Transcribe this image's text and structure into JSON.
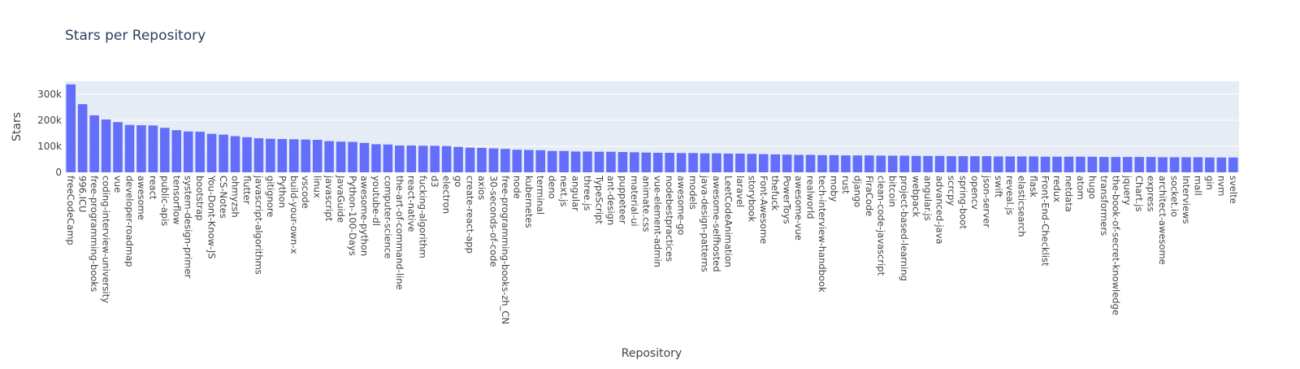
{
  "chart_data": {
    "type": "bar",
    "title": "Stars per Repository",
    "xlabel": "Repository",
    "ylabel": "Stars",
    "ylim": [
      0,
      350000
    ],
    "yticks": [
      0,
      100000,
      200000,
      300000
    ],
    "ytick_labels": [
      "0",
      "100k",
      "200k",
      "300k"
    ],
    "grid": true,
    "colors": {
      "bar": "#636efa",
      "plot_bg": "#e5ecf6",
      "grid": "#ffffff",
      "text": "#444444",
      "title": "#2a3f5f"
    },
    "categories": [
      "freeCodeCamp",
      "996.ICU",
      "free-programming-books",
      "coding-interview-university",
      "vue",
      "developer-roadmap",
      "awesome",
      "react",
      "public-apis",
      "tensorflow",
      "system-design-primer",
      "bootstrap",
      "You-Dont-Know-JS",
      "CS-Notes",
      "ohmyzsh",
      "flutter",
      "javascript-algorithms",
      "gitignore",
      "Python",
      "build-your-own-x",
      "vscode",
      "linux",
      "javascript",
      "JavaGuide",
      "Python-100-Days",
      "awesome-python",
      "youtube-dl",
      "computer-science",
      "the-art-of-command-line",
      "react-native",
      "fucking-algorithm",
      "d3",
      "electron",
      "go",
      "create-react-app",
      "axios",
      "30-seconds-of-code",
      "free-programming-books-zh_CN",
      "node",
      "kubernetes",
      "terminal",
      "deno",
      "next.js",
      "angular",
      "three.js",
      "TypeScript",
      "ant-design",
      "puppeteer",
      "material-ui",
      "animate.css",
      "vue-element-admin",
      "nodebestpractices",
      "awesome-go",
      "models",
      "java-design-patterns",
      "awesome-selfhosted",
      "LeetCodeAnimation",
      "laravel",
      "storybook",
      "Font-Awesome",
      "thefuck",
      "PowerToys",
      "awesome-vue",
      "realworld",
      "tech-interview-handbook",
      "moby",
      "rust",
      "django",
      "FiraCode",
      "clean-code-javascript",
      "bitcoin",
      "project-based-learning",
      "webpack",
      "angular.js",
      "advanced-java",
      "scrcpy",
      "spring-boot",
      "opencv",
      "json-server",
      "swift",
      "reveal.js",
      "elasticsearch",
      "flask",
      "Front-End-Checklist",
      "redux",
      "netdata",
      "atom",
      "hugo",
      "transformers",
      "the-book-of-secret-knowledge",
      "jquery",
      "Chart.js",
      "express",
      "architect-awesome",
      "socket.io",
      "Interviews",
      "mall",
      "gin",
      "nvm",
      "svelte"
    ],
    "values": [
      338000,
      262000,
      219000,
      203000,
      193000,
      182000,
      181000,
      180000,
      171000,
      162000,
      157000,
      156000,
      148000,
      145000,
      139000,
      135000,
      131000,
      129000,
      128000,
      127000,
      126000,
      125000,
      120000,
      118000,
      117000,
      113000,
      108000,
      107000,
      103000,
      103000,
      102000,
      102000,
      101000,
      98000,
      95000,
      94000,
      92000,
      90000,
      87000,
      86000,
      85000,
      82000,
      82000,
      80000,
      80000,
      79000,
      79000,
      78000,
      77000,
      76000,
      75000,
      75000,
      74000,
      74000,
      73000,
      73000,
      72000,
      72000,
      71000,
      70000,
      69000,
      68000,
      67000,
      67000,
      66000,
      66000,
      65000,
      65000,
      65000,
      64000,
      64000,
      64000,
      63000,
      63000,
      63000,
      62000,
      62000,
      62000,
      62000,
      61000,
      61000,
      61000,
      61000,
      60000,
      60000,
      60000,
      60000,
      60000,
      59000,
      59000,
      59000,
      59000,
      59000,
      58000,
      58000,
      58000,
      58000,
      57000,
      57000,
      57000
    ]
  }
}
